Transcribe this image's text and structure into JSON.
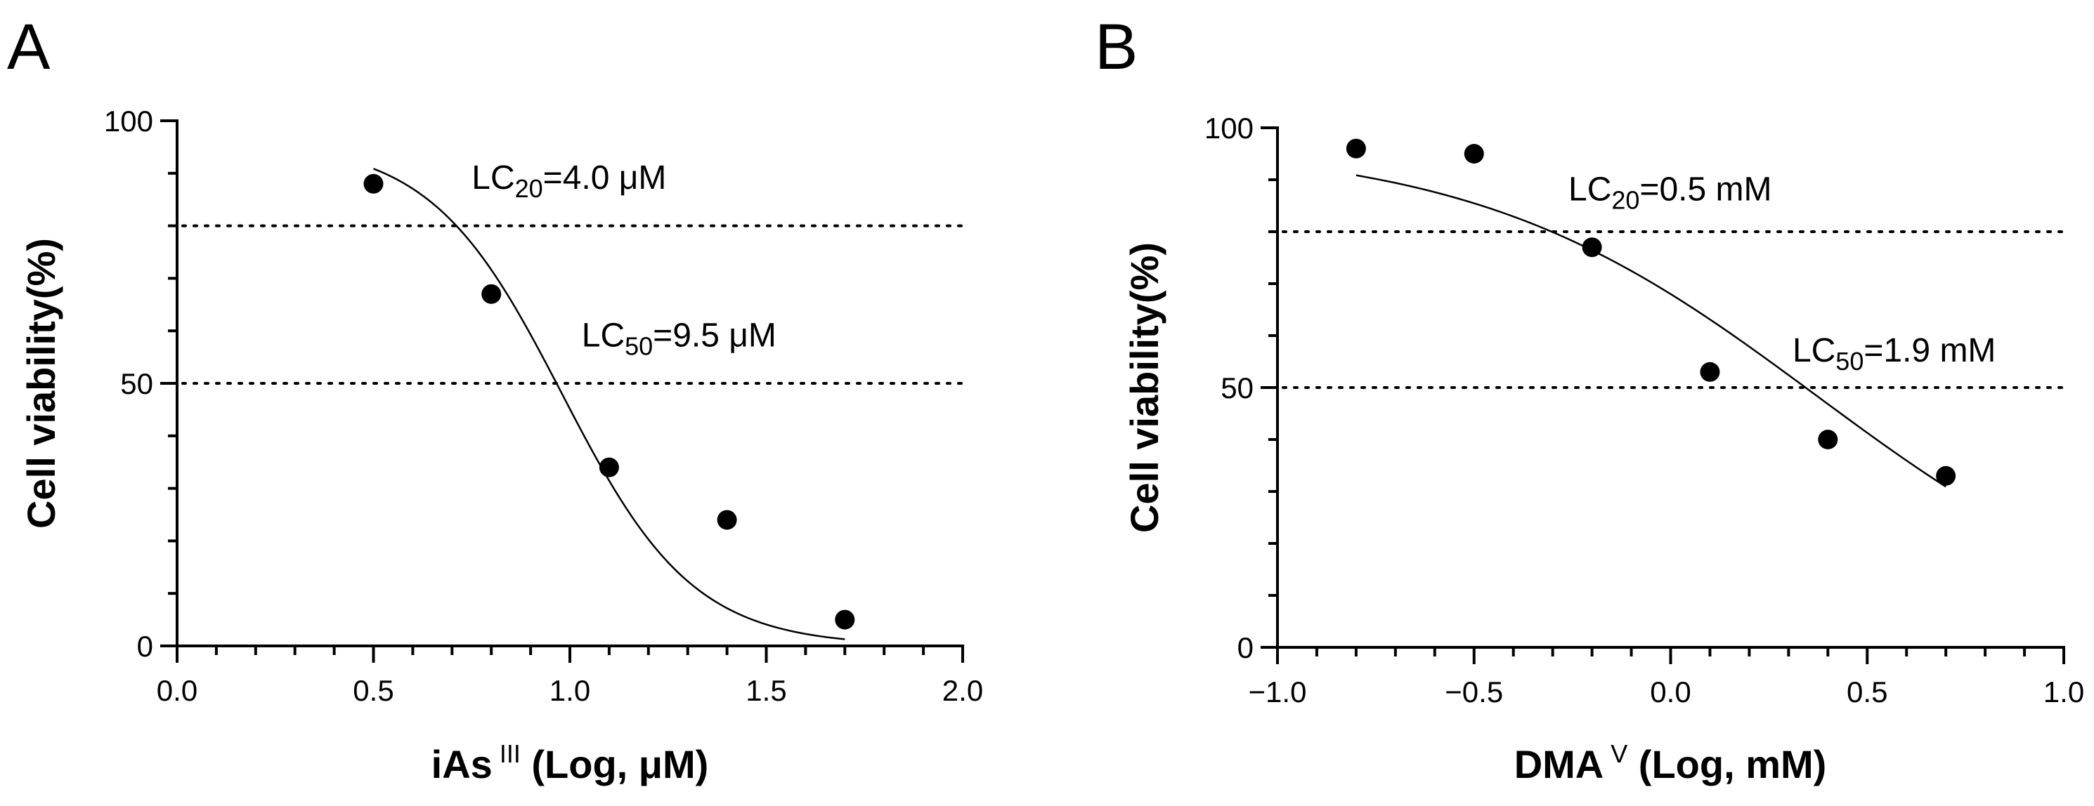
{
  "chart_data": [
    {
      "panel": "A",
      "type": "scatter",
      "xlabel_main": "iAs",
      "xlabel_sup": "III",
      "xlabel_rest": " (Log, μM)",
      "ylabel": "Cell viability(%)",
      "xlim": [
        0.0,
        2.0
      ],
      "ylim": [
        0,
        100
      ],
      "xticks": [
        0.0,
        0.5,
        1.0,
        1.5,
        2.0
      ],
      "xtick_labels": [
        "0.0",
        "0.5",
        "1.0",
        "1.5",
        "2.0"
      ],
      "xminor": [
        0.1,
        0.2,
        0.3,
        0.4,
        0.6,
        0.7,
        0.8,
        0.9,
        1.1,
        1.2,
        1.3,
        1.4,
        1.6,
        1.7,
        1.8,
        1.9
      ],
      "yticks": [
        0,
        50,
        100
      ],
      "ytick_labels": [
        "0",
        "50",
        "100"
      ],
      "yminor": [
        10,
        20,
        30,
        40,
        60,
        70,
        80,
        90
      ],
      "points": {
        "x": [
          0.5,
          0.8,
          1.1,
          1.4,
          1.7
        ],
        "y": [
          88,
          67,
          34,
          24,
          5
        ]
      },
      "fit": {
        "x0": 0.5,
        "x1": 1.7,
        "top": 96,
        "bottom": 0,
        "logec50": 0.98,
        "hill": 2.6
      },
      "ref_lines": [
        {
          "y": 80,
          "label_main": "LC",
          "label_sub": "20",
          "label_rest": "=4.0 μM",
          "label_x": 0.75,
          "label_y": 87
        },
        {
          "y": 50,
          "label_main": "LC",
          "label_sub": "50",
          "label_rest": "=9.5 μM",
          "label_x": 1.03,
          "label_y": 57
        }
      ]
    },
    {
      "panel": "B",
      "type": "scatter",
      "xlabel_main": "DMA",
      "xlabel_sup": "V",
      "xlabel_rest": " (Log, mM)",
      "ylabel": "Cell viability(%)",
      "xlim": [
        -1.0,
        1.0
      ],
      "ylim": [
        0,
        100
      ],
      "xticks": [
        -1.0,
        -0.5,
        0.0,
        0.5,
        1.0
      ],
      "xtick_labels": [
        "−1.0",
        "−0.5",
        "0.0",
        "0.5",
        "1.0"
      ],
      "xminor": [
        -0.9,
        -0.8,
        -0.7,
        -0.6,
        -0.4,
        -0.3,
        -0.2,
        -0.1,
        0.1,
        0.2,
        0.3,
        0.4,
        0.6,
        0.7,
        0.8,
        0.9
      ],
      "yticks": [
        0,
        50,
        100
      ],
      "ytick_labels": [
        "0",
        "50",
        "100"
      ],
      "yminor": [
        10,
        20,
        30,
        40,
        60,
        70,
        80,
        90
      ],
      "points": {
        "x": [
          -0.8,
          -0.5,
          -0.2,
          0.1,
          0.4,
          0.7
        ],
        "y": [
          96,
          95,
          77,
          53,
          40,
          33
        ]
      },
      "fit": {
        "x0": -0.8,
        "x1": 0.7,
        "top": 97,
        "bottom": 0,
        "logec50": 0.37,
        "hill": 1.0
      },
      "ref_lines": [
        {
          "y": 80,
          "label_main": "LC",
          "label_sub": "20",
          "label_rest": "=0.5 mM",
          "label_x": -0.26,
          "label_y": 86
        },
        {
          "y": 50,
          "label_main": "LC",
          "label_sub": "50",
          "label_rest": "=1.9 mM",
          "label_x": 0.31,
          "label_y": 55
        }
      ]
    }
  ]
}
